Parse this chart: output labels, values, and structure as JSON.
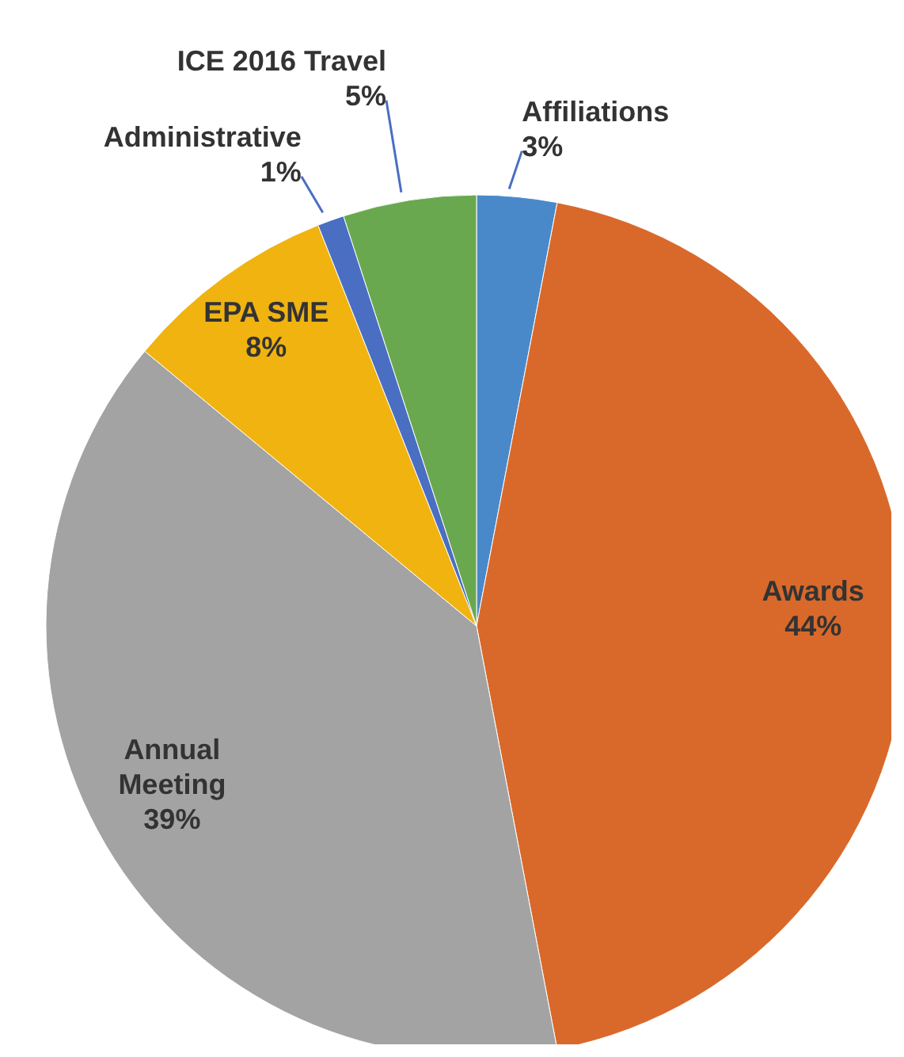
{
  "chart_data": {
    "type": "pie",
    "categories": [
      "Affiliations",
      "Awards",
      "Annual Meeting",
      "EPA SME",
      "Administrative",
      "ICE 2016 Travel"
    ],
    "values": [
      3,
      44,
      39,
      8,
      1,
      5
    ],
    "value_labels": [
      "3%",
      "44%",
      "39%",
      "8%",
      "1%",
      "5%"
    ],
    "colors": [
      "#4a89c9",
      "#d9692a",
      "#a3a3a3",
      "#f0b310",
      "#4a6fc2",
      "#6aa84f"
    ]
  }
}
